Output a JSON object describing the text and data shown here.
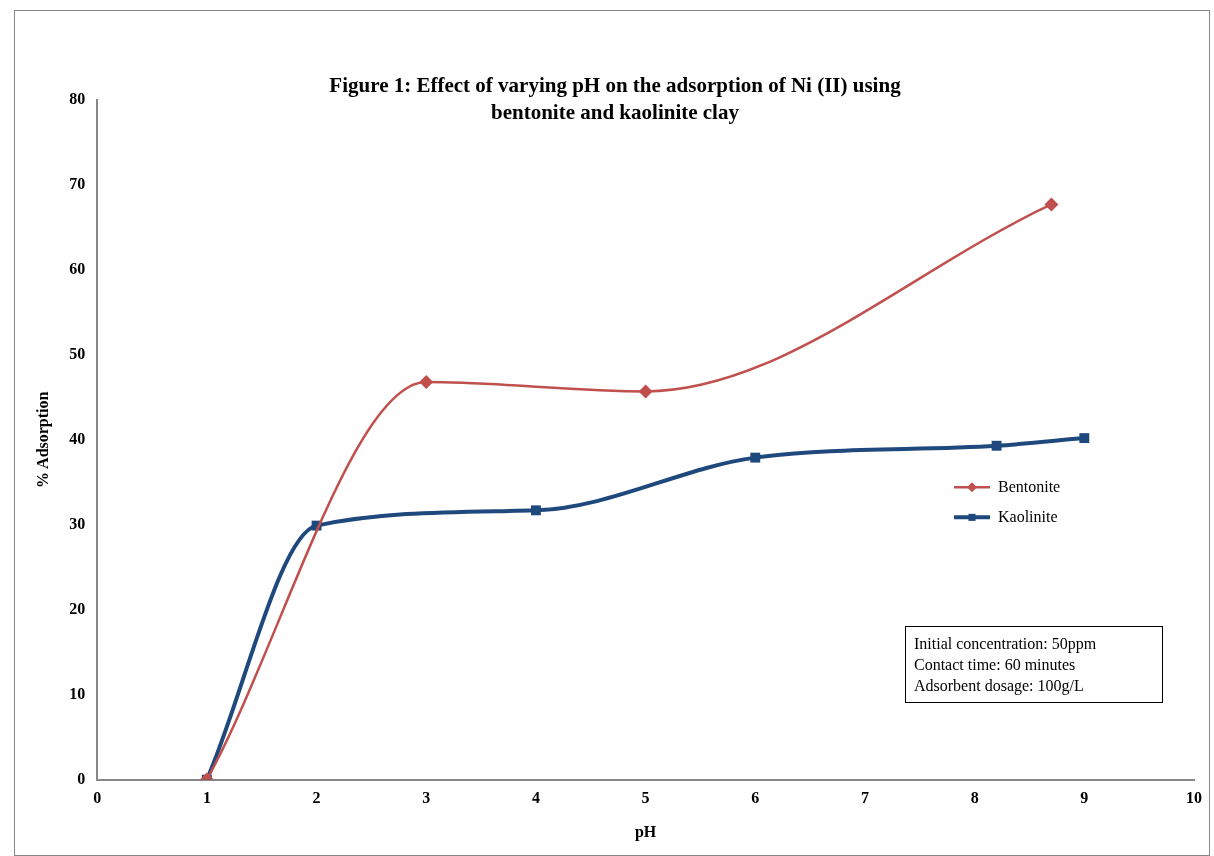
{
  "chart_data": {
    "type": "line",
    "title": "Figure 1: Effect of varying pH on the adsorption of  Ni (II) using bentonite and kaolinite clay",
    "xlabel": "pH",
    "ylabel": "% Adsorption",
    "xlim": [
      0,
      10
    ],
    "xticks": [
      0,
      1,
      2,
      3,
      4,
      5,
      6,
      7,
      8,
      9,
      10
    ],
    "ylim": [
      0,
      80
    ],
    "yticks": [
      0,
      10,
      20,
      30,
      40,
      50,
      60,
      70,
      80
    ],
    "grid": false,
    "legend": "right",
    "series": [
      {
        "name": "Bentonite",
        "color": "#c0504d",
        "marker": "diamond",
        "x": [
          1,
          3,
          5,
          8.7
        ],
        "values": [
          0,
          46.8,
          45.7,
          67.7
        ]
      },
      {
        "name": "Kaolinite",
        "color": "#1f497d",
        "marker": "square",
        "x": [
          1,
          2,
          4,
          6,
          8.2,
          9
        ],
        "values": [
          0,
          29.9,
          31.7,
          37.9,
          39.3,
          40.2
        ]
      }
    ],
    "annotations": [
      "Initial concentration: 50ppm",
      "Contact time: 60 minutes",
      "Adsorbent dosage: 100g/L"
    ]
  }
}
